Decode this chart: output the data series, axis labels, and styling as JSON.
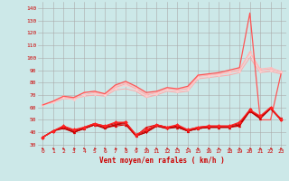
{
  "xlabel": "Vent moyen/en rafales ( km/h )",
  "bg_color": "#cce8e8",
  "grid_color": "#aaaaaa",
  "x": [
    0,
    1,
    2,
    3,
    4,
    5,
    6,
    7,
    8,
    9,
    10,
    11,
    12,
    13,
    14,
    15,
    16,
    17,
    18,
    19,
    20,
    21,
    22,
    23
  ],
  "ylim": [
    27,
    145
  ],
  "yticks": [
    30,
    40,
    50,
    60,
    70,
    80,
    90,
    100,
    110,
    120,
    130,
    140
  ],
  "series": [
    {
      "color": "#ffaaaa",
      "lw": 0.7,
      "marker": null,
      "data": [
        62,
        65,
        68,
        67,
        70,
        72,
        70,
        76,
        79,
        75,
        70,
        72,
        75,
        74,
        75,
        85,
        86,
        87,
        88,
        90,
        104,
        90,
        91,
        88
      ]
    },
    {
      "color": "#ffaaaa",
      "lw": 0.7,
      "marker": null,
      "data": [
        62,
        64,
        67,
        67,
        69,
        70,
        69,
        74,
        75,
        73,
        68,
        70,
        73,
        72,
        73,
        83,
        84,
        85,
        86,
        88,
        100,
        88,
        89,
        87
      ]
    },
    {
      "color": "#ffbbbb",
      "lw": 0.7,
      "marker": "D",
      "ms": 1.5,
      "data": [
        62,
        65,
        69,
        68,
        72,
        73,
        71,
        77,
        80,
        76,
        71,
        72,
        75,
        75,
        76,
        86,
        86,
        87,
        89,
        91,
        105,
        91,
        92,
        89
      ]
    },
    {
      "color": "#ffcccc",
      "lw": 0.7,
      "marker": "D",
      "ms": 1.5,
      "data": [
        62,
        64,
        68,
        66,
        70,
        71,
        70,
        75,
        78,
        74,
        69,
        71,
        74,
        73,
        74,
        84,
        85,
        86,
        88,
        89,
        103,
        89,
        90,
        88
      ]
    },
    {
      "color": "#ff5555",
      "lw": 0.9,
      "marker": null,
      "data": [
        62,
        65,
        69,
        68,
        72,
        73,
        71,
        78,
        81,
        77,
        72,
        73,
        76,
        75,
        77,
        86,
        87,
        88,
        90,
        92,
        136,
        50,
        50,
        87
      ]
    },
    {
      "color": "#dd0000",
      "lw": 0.8,
      "marker": "^",
      "ms": 2.0,
      "data": [
        36,
        41,
        44,
        40,
        43,
        46,
        44,
        45,
        46,
        37,
        44,
        46,
        44,
        44,
        41,
        43,
        44,
        44,
        44,
        45,
        57,
        51,
        60,
        50
      ]
    },
    {
      "color": "#dd0000",
      "lw": 0.8,
      "marker": "v",
      "ms": 2.0,
      "data": [
        36,
        41,
        44,
        40,
        43,
        46,
        44,
        46,
        48,
        37,
        40,
        45,
        43,
        45,
        41,
        43,
        44,
        44,
        44,
        46,
        58,
        52,
        59,
        51
      ]
    },
    {
      "color": "#bb0000",
      "lw": 0.8,
      "marker": null,
      "data": [
        36,
        41,
        45,
        41,
        44,
        47,
        45,
        47,
        48,
        38,
        41,
        46,
        44,
        45,
        42,
        44,
        45,
        45,
        45,
        47,
        58,
        52,
        59,
        50
      ]
    },
    {
      "color": "#bb0000",
      "lw": 0.8,
      "marker": null,
      "data": [
        36,
        41,
        43,
        40,
        43,
        46,
        43,
        46,
        47,
        37,
        40,
        45,
        43,
        44,
        41,
        43,
        44,
        44,
        44,
        46,
        57,
        51,
        59,
        50
      ]
    },
    {
      "color": "#ff2222",
      "lw": 1.0,
      "marker": "D",
      "ms": 2.0,
      "data": [
        36,
        41,
        45,
        42,
        44,
        47,
        45,
        48,
        48,
        38,
        42,
        46,
        44,
        46,
        42,
        44,
        45,
        45,
        45,
        48,
        58,
        53,
        60,
        50
      ]
    },
    {
      "color": "#cc0000",
      "lw": 0.6,
      "marker": ">",
      "ms": 1.5,
      "data": [
        27,
        27,
        27,
        27,
        27,
        27,
        27,
        27,
        27,
        27,
        27,
        27,
        27,
        27,
        27,
        27,
        27,
        27,
        27,
        27,
        27,
        27,
        27,
        27
      ]
    }
  ]
}
